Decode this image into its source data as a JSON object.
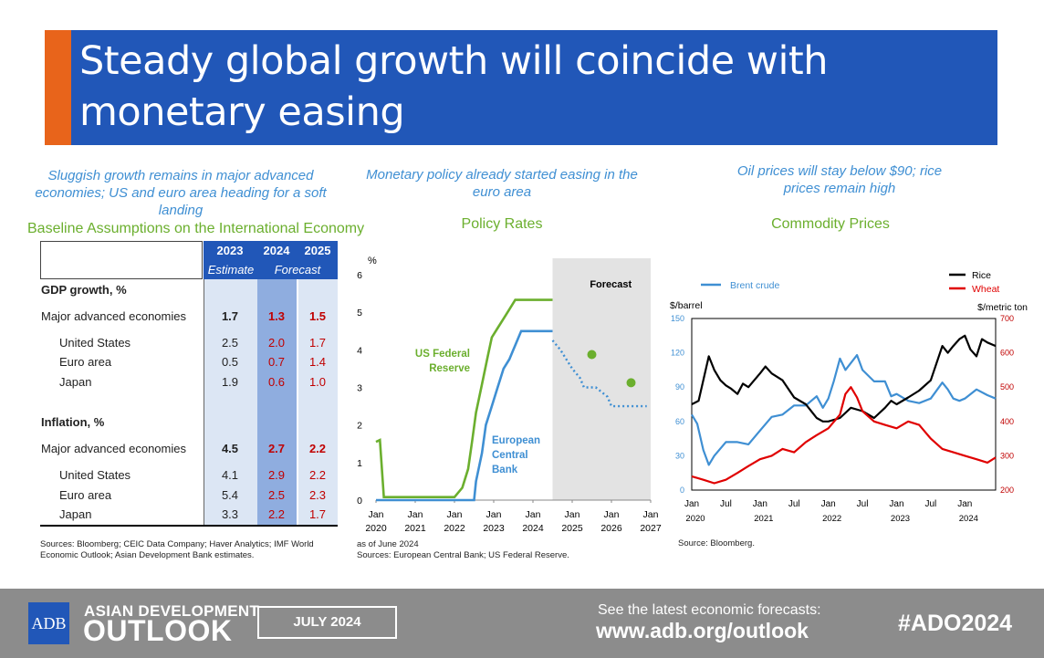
{
  "title": "Steady global growth will coincide with monetary easing",
  "colors": {
    "banner": "#2157B8",
    "accent": "#E8641B",
    "green": "#6BAF2E",
    "blue": "#3F8FD3",
    "red": "#C00000"
  },
  "panel1": {
    "caption": "Sluggish growth remains in major advanced economies; US and euro area heading for a soft landing",
    "heading": "Baseline Assumptions on the International Economy",
    "table": {
      "years": [
        "2023",
        "2024",
        "2025"
      ],
      "estimate": "Estimate",
      "forecast": "Forecast",
      "gdp_header": "GDP growth, %",
      "inflation_header": "Inflation, %",
      "gdp_rows": [
        {
          "label": "Major advanced economies",
          "v": [
            "1.7",
            "1.3",
            "1.5"
          ]
        },
        {
          "label": "United States",
          "v": [
            "2.5",
            "2.0",
            "1.7"
          ]
        },
        {
          "label": "Euro area",
          "v": [
            "0.5",
            "0.7",
            "1.4"
          ]
        },
        {
          "label": "Japan",
          "v": [
            "1.9",
            "0.6",
            "1.0"
          ]
        }
      ],
      "inflation_rows": [
        {
          "label": "Major advanced economies",
          "v": [
            "4.5",
            "2.7",
            "2.2"
          ]
        },
        {
          "label": "United States",
          "v": [
            "4.1",
            "2.9",
            "2.2"
          ]
        },
        {
          "label": "Euro area",
          "v": [
            "5.4",
            "2.5",
            "2.3"
          ]
        },
        {
          "label": "Japan",
          "v": [
            "3.3",
            "2.2",
            "1.7"
          ]
        }
      ]
    },
    "sources": "Sources: Bloomberg; CEIC Data Company; Haver Analytics; IMF World Economic Outlook;  Asian Development Bank estimates."
  },
  "panel2": {
    "caption": "Monetary policy already started easing in the euro area",
    "heading": "Policy Rates",
    "note": "as of June 2024",
    "sources": "Sources: European Central Bank; US Federal Reserve."
  },
  "panel3": {
    "caption": "Oil prices will stay below $90; rice prices remain high",
    "heading": "Commodity Prices",
    "sources": "Source: Bloomberg."
  },
  "chart_data": [
    {
      "type": "line",
      "title": "Policy Rates",
      "ylabel": "%",
      "ylim": [
        0,
        6
      ],
      "yticks": [
        "0",
        "1",
        "2",
        "3",
        "4",
        "5",
        "6"
      ],
      "xticks": [
        [
          "Jan",
          "2020"
        ],
        [
          "Jan",
          "2021"
        ],
        [
          "Jan",
          "2022"
        ],
        [
          "Jan",
          "2023"
        ],
        [
          "Jan",
          "2024"
        ],
        [
          "Jan",
          "2025"
        ],
        [
          "Jan",
          "2026"
        ],
        [
          "Jan",
          "2027"
        ]
      ],
      "forecast_label": "Forecast",
      "forecast_start": 2024.5,
      "series": [
        {
          "name": "US Federal Reserve",
          "color": "#6BAF2E",
          "points": [
            [
              2020.0,
              1.55
            ],
            [
              2020.1,
              1.6
            ],
            [
              2020.2,
              0.08
            ],
            [
              2020.5,
              0.08
            ],
            [
              2021.0,
              0.08
            ],
            [
              2021.5,
              0.08
            ],
            [
              2022.0,
              0.08
            ],
            [
              2022.2,
              0.33
            ],
            [
              2022.35,
              0.83
            ],
            [
              2022.45,
              1.58
            ],
            [
              2022.55,
              2.33
            ],
            [
              2022.7,
              3.08
            ],
            [
              2022.85,
              3.83
            ],
            [
              2022.95,
              4.33
            ],
            [
              2023.1,
              4.58
            ],
            [
              2023.25,
              4.83
            ],
            [
              2023.4,
              5.08
            ],
            [
              2023.55,
              5.33
            ],
            [
              2024.5,
              5.33
            ]
          ]
        },
        {
          "name": "European Central Bank",
          "color": "#3F8FD3",
          "points": [
            [
              2020.0,
              0.0
            ],
            [
              2022.5,
              0.0
            ],
            [
              2022.55,
              0.5
            ],
            [
              2022.7,
              1.25
            ],
            [
              2022.8,
              2.0
            ],
            [
              2022.95,
              2.5
            ],
            [
              2023.1,
              3.0
            ],
            [
              2023.25,
              3.5
            ],
            [
              2023.4,
              3.75
            ],
            [
              2023.5,
              4.0
            ],
            [
              2023.7,
              4.5
            ],
            [
              2024.5,
              4.5
            ]
          ]
        }
      ],
      "forecast_series": [
        {
          "name": "European Central Bank",
          "color": "#3F8FD3",
          "points": [
            [
              2024.5,
              4.25
            ],
            [
              2024.7,
              4.0
            ],
            [
              2024.85,
              3.75
            ],
            [
              2025.0,
              3.5
            ],
            [
              2025.2,
              3.25
            ],
            [
              2025.3,
              3.0
            ],
            [
              2025.6,
              3.0
            ],
            [
              2025.9,
              2.75
            ],
            [
              2026.0,
              2.5
            ],
            [
              2026.9,
              2.5
            ]
          ]
        }
      ],
      "fed_forecast_points": [
        [
          2025.5,
          3.875
        ],
        [
          2026.5,
          3.125
        ]
      ],
      "annotations": [
        "US Federal Reserve",
        "European Central Bank"
      ]
    },
    {
      "type": "line",
      "title": "Commodity Prices",
      "left_unit": "$/barrel",
      "right_unit": "$/metric ton",
      "left_ylim": [
        0,
        150
      ],
      "right_ylim": [
        200,
        700
      ],
      "left_yticks": [
        "0",
        "30",
        "60",
        "90",
        "120",
        "150"
      ],
      "right_yticks": [
        "200",
        "300",
        "400",
        "500",
        "600",
        "700"
      ],
      "xticks": [
        "Jan",
        "Jul",
        "Jan",
        "Jul",
        "Jan",
        "Jul",
        "Jan",
        "Jul",
        "Jan"
      ],
      "year_labels": [
        "2020",
        "2021",
        "2022",
        "2023",
        "2024"
      ],
      "legend": [
        "Brent crude",
        "Rice",
        "Wheat"
      ],
      "series": [
        {
          "name": "Brent crude",
          "axis": "left",
          "color": "#3F8FD3",
          "points": [
            [
              2020.0,
              66
            ],
            [
              2020.08,
              58
            ],
            [
              2020.17,
              35
            ],
            [
              2020.25,
              22
            ],
            [
              2020.33,
              30
            ],
            [
              2020.5,
              42
            ],
            [
              2020.67,
              42
            ],
            [
              2020.83,
              40
            ],
            [
              2021.0,
              52
            ],
            [
              2021.17,
              64
            ],
            [
              2021.33,
              66
            ],
            [
              2021.5,
              74
            ],
            [
              2021.67,
              74
            ],
            [
              2021.83,
              82
            ],
            [
              2021.92,
              72
            ],
            [
              2022.0,
              80
            ],
            [
              2022.08,
              95
            ],
            [
              2022.17,
              115
            ],
            [
              2022.25,
              105
            ],
            [
              2022.42,
              118
            ],
            [
              2022.5,
              105
            ],
            [
              2022.67,
              95
            ],
            [
              2022.83,
              95
            ],
            [
              2022.92,
              82
            ],
            [
              2023.0,
              84
            ],
            [
              2023.17,
              78
            ],
            [
              2023.33,
              76
            ],
            [
              2023.5,
              80
            ],
            [
              2023.67,
              94
            ],
            [
              2023.75,
              88
            ],
            [
              2023.83,
              80
            ],
            [
              2023.92,
              78
            ],
            [
              2024.0,
              80
            ],
            [
              2024.17,
              88
            ],
            [
              2024.33,
              83
            ],
            [
              2024.45,
              80
            ]
          ]
        },
        {
          "name": "Rice",
          "axis": "right",
          "color": "#000000",
          "points": [
            [
              2020.0,
              450
            ],
            [
              2020.1,
              460
            ],
            [
              2020.25,
              590
            ],
            [
              2020.33,
              550
            ],
            [
              2020.42,
              520
            ],
            [
              2020.5,
              505
            ],
            [
              2020.58,
              495
            ],
            [
              2020.67,
              480
            ],
            [
              2020.75,
              510
            ],
            [
              2020.83,
              500
            ],
            [
              2021.0,
              540
            ],
            [
              2021.08,
              560
            ],
            [
              2021.17,
              540
            ],
            [
              2021.33,
              520
            ],
            [
              2021.5,
              470
            ],
            [
              2021.67,
              450
            ],
            [
              2021.83,
              410
            ],
            [
              2021.92,
              400
            ],
            [
              2022.0,
              400
            ],
            [
              2022.17,
              410
            ],
            [
              2022.33,
              440
            ],
            [
              2022.5,
              430
            ],
            [
              2022.67,
              410
            ],
            [
              2022.83,
              440
            ],
            [
              2022.92,
              460
            ],
            [
              2023.0,
              450
            ],
            [
              2023.17,
              470
            ],
            [
              2023.33,
              490
            ],
            [
              2023.5,
              520
            ],
            [
              2023.67,
              620
            ],
            [
              2023.75,
              600
            ],
            [
              2023.83,
              620
            ],
            [
              2023.92,
              640
            ],
            [
              2024.0,
              650
            ],
            [
              2024.08,
              610
            ],
            [
              2024.17,
              590
            ],
            [
              2024.25,
              640
            ],
            [
              2024.33,
              630
            ],
            [
              2024.45,
              620
            ]
          ]
        },
        {
          "name": "Wheat",
          "axis": "right",
          "color": "#E00000",
          "points": [
            [
              2020.0,
              240
            ],
            [
              2020.17,
              230
            ],
            [
              2020.33,
              220
            ],
            [
              2020.5,
              230
            ],
            [
              2020.67,
              250
            ],
            [
              2020.83,
              270
            ],
            [
              2021.0,
              290
            ],
            [
              2021.17,
              300
            ],
            [
              2021.33,
              320
            ],
            [
              2021.5,
              310
            ],
            [
              2021.67,
              340
            ],
            [
              2021.83,
              360
            ],
            [
              2022.0,
              380
            ],
            [
              2022.17,
              420
            ],
            [
              2022.25,
              480
            ],
            [
              2022.33,
              500
            ],
            [
              2022.42,
              470
            ],
            [
              2022.5,
              430
            ],
            [
              2022.67,
              400
            ],
            [
              2022.83,
              390
            ],
            [
              2023.0,
              380
            ],
            [
              2023.17,
              400
            ],
            [
              2023.33,
              390
            ],
            [
              2023.5,
              350
            ],
            [
              2023.67,
              320
            ],
            [
              2023.83,
              310
            ],
            [
              2024.0,
              300
            ],
            [
              2024.17,
              290
            ],
            [
              2024.33,
              280
            ],
            [
              2024.45,
              295
            ]
          ]
        }
      ]
    }
  ],
  "footer": {
    "logo": "ADB",
    "line1": "ASIAN DEVELOPMENT",
    "line2": "OUTLOOK",
    "date": "JULY 2024",
    "see": "See the latest economic forecasts:",
    "url": "www.adb.org/outlook",
    "hashtag": "#ADO2024"
  }
}
